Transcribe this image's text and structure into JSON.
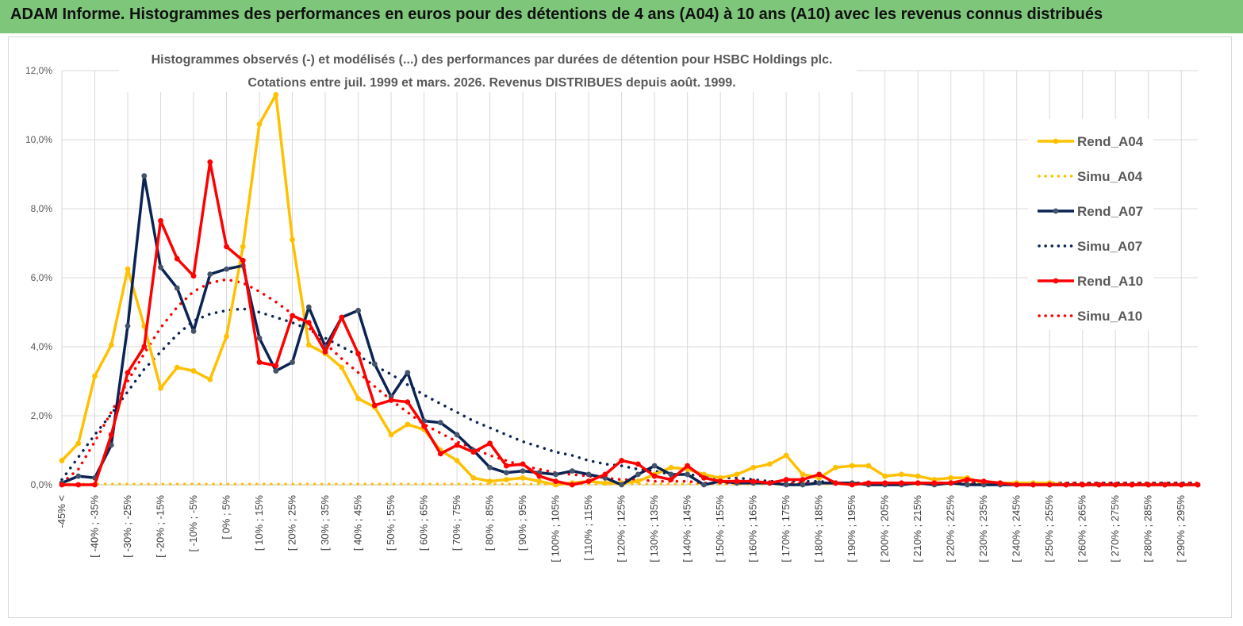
{
  "header": {
    "banner": "ADAM Informe. Histogrammes des performances en euros pour des détentions de 4 ans (A04) à 10 ans (A10) avec les revenus connus distribués"
  },
  "colors": {
    "banner_bg": "#7dc67a",
    "A04": "#ffc000",
    "A07": "#0b2454",
    "A10": "#ff0000",
    "grid": "#d9d9d9"
  },
  "chart_data": {
    "type": "line",
    "title_line1": "Histogrammes observés (-) et modélisés (...) des performances par durées de détention pour HSBC Holdings plc.",
    "title_line2": "Cotations entre juil. 1999 et mars. 2026. Revenus DISTRIBUES depuis août. 1999.",
    "ylim": [
      0,
      12
    ],
    "y_ticks": [
      "0,0%",
      "2,0%",
      "4,0%",
      "6,0%",
      "8,0%",
      "10,0%",
      "12,0%"
    ],
    "category_labels": [
      "-45% <",
      "[ -40% ; -35%",
      "[ -30% ; -25%",
      "[ -20% ; -15%",
      "[ -10% ; -5%",
      "[ 0% ; 5%",
      "[ 10% ; 15%",
      "[ 20% ; 25%",
      "[ 30% ; 35%",
      "[ 40% ; 45%",
      "[ 50% ; 55%",
      "[ 60% ; 65%",
      "[ 70% ; 75%",
      "[ 80% ; 85%",
      "[ 90% ; 95%",
      "[ 100% ; 105%",
      "[ 110% ; 115%",
      "[ 120% ; 125%",
      "[ 130% ; 135%",
      "[ 140% ; 145%",
      "[ 150% ; 155%",
      "[ 160% ; 165%",
      "[ 170% ; 175%",
      "[ 180% ; 185%",
      "[ 190% ; 195%",
      "[ 200% ; 205%",
      "[ 210% ; 215%",
      "[ 220% ; 225%",
      "[ 230% ; 235%",
      "[ 240% ; 245%",
      "[ 250% ; 255%",
      "[ 260% ; 265%",
      "[ 270% ; 275%",
      "[ 280% ; 285%",
      "[ 290% ; 295%"
    ],
    "num_points": 70,
    "series": [
      {
        "name": "Rend_A04",
        "style": "solid",
        "color": "#ffc000",
        "values": [
          0.7,
          1.2,
          3.15,
          4.05,
          6.25,
          4.6,
          2.8,
          3.4,
          3.3,
          3.05,
          4.3,
          6.9,
          10.45,
          11.3,
          7.1,
          4.05,
          3.8,
          3.4,
          2.5,
          2.25,
          1.45,
          1.75,
          1.6,
          1.0,
          0.7,
          0.2,
          0.1,
          0.15,
          0.2,
          0.1,
          0.0,
          0.05,
          0.1,
          0.05,
          0.05,
          0.1,
          0.3,
          0.5,
          0.45,
          0.3,
          0.2,
          0.3,
          0.5,
          0.6,
          0.85,
          0.3,
          0.2,
          0.5,
          0.55,
          0.55,
          0.25,
          0.3,
          0.25,
          0.15,
          0.2,
          0.2,
          0.05,
          0.05,
          0.05,
          0.05,
          0.05,
          0.0,
          0.0,
          0.0,
          0.0,
          0.0,
          0.0,
          0.0,
          0.0,
          0.0
        ]
      },
      {
        "name": "Simu_A04",
        "style": "dotted",
        "color": "#ffc000",
        "values": [
          0.02,
          0.02,
          0.02,
          0.02,
          0.02,
          0.02,
          0.02,
          0.02,
          0.02,
          0.02,
          0.02,
          0.02,
          0.02,
          0.02,
          0.02,
          0.02,
          0.02,
          0.02,
          0.02,
          0.02,
          0.02,
          0.02,
          0.02,
          0.02,
          0.02,
          0.02,
          0.02,
          0.02,
          0.02,
          0.02,
          0.02,
          0.02,
          0.02,
          0.02,
          0.02,
          0.02,
          0.02,
          0.02,
          0.02,
          0.02,
          0.02,
          0.02,
          0.02,
          0.02,
          0.02,
          0.02,
          0.02,
          0.02,
          0.02,
          0.02,
          0.02,
          0.02,
          0.02,
          0.02,
          0.02,
          0.02,
          0.02,
          0.02,
          0.02,
          0.02,
          0.02,
          0.02,
          0.02,
          0.02,
          0.02,
          0.02,
          0.02,
          0.02,
          0.02,
          0.02
        ]
      },
      {
        "name": "Rend_A07",
        "style": "solid",
        "color": "#0b2454",
        "values": [
          0.05,
          0.25,
          0.2,
          1.15,
          4.6,
          8.95,
          6.3,
          5.7,
          4.45,
          6.1,
          6.25,
          6.35,
          4.25,
          3.3,
          3.55,
          5.15,
          4.0,
          4.85,
          5.05,
          3.5,
          2.55,
          3.25,
          1.85,
          1.8,
          1.45,
          1.0,
          0.5,
          0.35,
          0.4,
          0.35,
          0.3,
          0.4,
          0.3,
          0.2,
          0.0,
          0.3,
          0.55,
          0.3,
          0.3,
          0.0,
          0.1,
          0.05,
          0.05,
          0.05,
          0.0,
          0.0,
          0.05,
          0.05,
          0.05,
          0.0,
          0.0,
          0.0,
          0.05,
          0.0,
          0.05,
          0.0,
          0.0,
          0.0,
          0.0,
          0.0,
          0.0,
          0.0,
          0.0,
          0.0,
          0.0,
          0.0,
          0.0,
          0.0,
          0.0,
          0.0
        ]
      },
      {
        "name": "Simu_A07",
        "style": "dotted",
        "color": "#0b2454",
        "values": [
          0.15,
          0.8,
          1.45,
          2.05,
          2.7,
          3.35,
          3.85,
          4.35,
          4.75,
          4.95,
          5.05,
          5.1,
          5.0,
          4.85,
          4.7,
          4.5,
          4.25,
          4.0,
          3.75,
          3.45,
          3.2,
          2.9,
          2.6,
          2.35,
          2.1,
          1.85,
          1.65,
          1.45,
          1.25,
          1.1,
          0.95,
          0.85,
          0.7,
          0.6,
          0.55,
          0.45,
          0.4,
          0.3,
          0.3,
          0.25,
          0.2,
          0.2,
          0.15,
          0.1,
          0.1,
          0.1,
          0.1,
          0.05,
          0.05,
          0.05,
          0.05,
          0.05,
          0.05,
          0.05,
          0.05,
          0.05,
          0.05,
          0.05,
          0.05,
          0.05,
          0.05,
          0.05,
          0.05,
          0.05,
          0.05,
          0.05,
          0.05,
          0.05,
          0.05,
          0.05
        ]
      },
      {
        "name": "Rend_A10",
        "style": "solid",
        "color": "#ff0000",
        "values": [
          0.0,
          0.0,
          0.0,
          1.45,
          3.25,
          4.0,
          7.65,
          6.55,
          6.05,
          9.35,
          6.9,
          6.5,
          3.55,
          3.45,
          4.9,
          4.7,
          3.85,
          4.85,
          3.8,
          2.3,
          2.45,
          2.4,
          1.7,
          0.9,
          1.15,
          0.95,
          1.2,
          0.55,
          0.6,
          0.25,
          0.1,
          0.0,
          0.1,
          0.3,
          0.7,
          0.6,
          0.25,
          0.15,
          0.55,
          0.2,
          0.1,
          0.1,
          0.1,
          0.05,
          0.15,
          0.15,
          0.3,
          0.05,
          0.0,
          0.05,
          0.05,
          0.05,
          0.05,
          0.05,
          0.05,
          0.15,
          0.1,
          0.05,
          0.0,
          0.0,
          0.0,
          0.0,
          0.0,
          0.0,
          0.0,
          0.0,
          0.0,
          0.0,
          0.0,
          0.0
        ]
      },
      {
        "name": "Simu_A10",
        "style": "dotted",
        "color": "#ff0000",
        "values": [
          0.05,
          0.45,
          1.25,
          2.1,
          3.0,
          3.8,
          4.55,
          5.15,
          5.6,
          5.85,
          5.95,
          5.85,
          5.6,
          5.3,
          4.95,
          4.55,
          4.1,
          3.65,
          3.25,
          2.85,
          2.45,
          2.1,
          1.75,
          1.5,
          1.25,
          1.05,
          0.85,
          0.7,
          0.55,
          0.45,
          0.35,
          0.3,
          0.25,
          0.2,
          0.15,
          0.15,
          0.1,
          0.1,
          0.1,
          0.05,
          0.05,
          0.05,
          0.05,
          0.05,
          0.05,
          0.05,
          0.05,
          0.05,
          0.05,
          0.05,
          0.05,
          0.05,
          0.05,
          0.05,
          0.05,
          0.05,
          0.05,
          0.05,
          0.05,
          0.05,
          0.05,
          0.05,
          0.05,
          0.05,
          0.05,
          0.05,
          0.05,
          0.05,
          0.05,
          0.05
        ]
      }
    ]
  }
}
